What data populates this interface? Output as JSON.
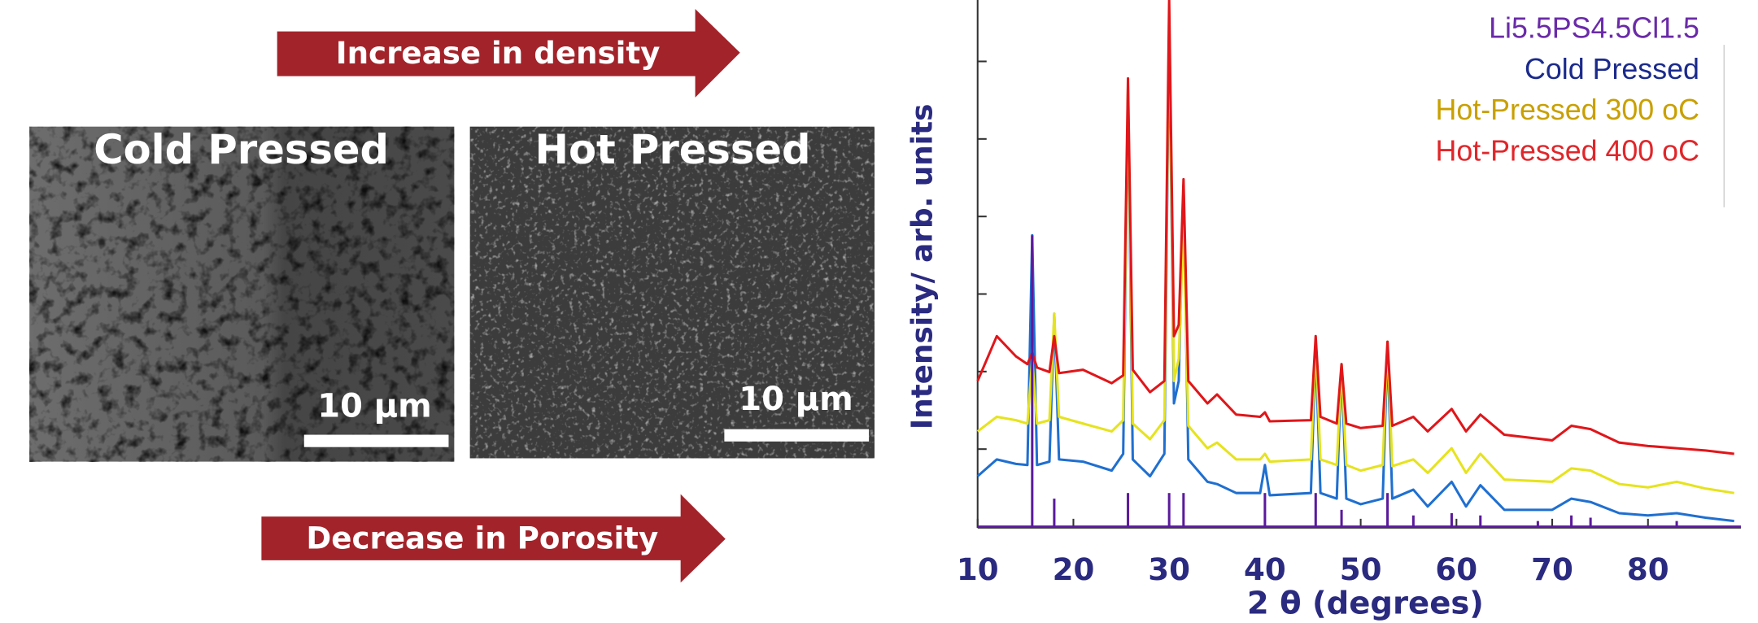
{
  "panels": {
    "arrow_top": "Increase in density",
    "arrow_bottom": "Decrease in Porosity",
    "image_left": {
      "label": "Cold Pressed",
      "scale": "10 µm"
    },
    "image_right": {
      "label": "Hot Pressed",
      "scale": "10 µm"
    }
  },
  "chart_data": {
    "type": "line",
    "x_label": "2 θ (degrees)",
    "y_label": "Intensity/ arb. units",
    "xlim": [
      10,
      89.7
    ],
    "xticks": [
      10,
      20,
      30,
      40,
      50,
      60,
      70,
      80
    ],
    "ylim": [
      0,
      47
    ],
    "legend": "top-right",
    "x": [
      10,
      12,
      14,
      15.2,
      15.7,
      16.2,
      17.5,
      18,
      18.5,
      21,
      24,
      25.2,
      25.7,
      26.2,
      28,
      29.5,
      30,
      30.5,
      31,
      31.5,
      32,
      34,
      35,
      37,
      39.5,
      40,
      40.5,
      44.8,
      45.3,
      45.8,
      47.5,
      48,
      48.5,
      50,
      52.3,
      52.8,
      53.3,
      55.5,
      57,
      59.5,
      61,
      62.5,
      65,
      70,
      72,
      74,
      77,
      80,
      83,
      86,
      89
    ],
    "series": [
      {
        "name": "Li5.5PS4.5Cl1.5",
        "style": "stick",
        "color": "#5b1a9c",
        "label_color": "#6a2aa8",
        "x": [
          15.7,
          18,
          25.7,
          30,
          31.5,
          40,
          45.3,
          48,
          52.8,
          55.5,
          59.5,
          62.5,
          68.5,
          72,
          74,
          83
        ],
        "values": [
          26,
          2.5,
          3,
          3,
          3,
          3,
          3,
          1.5,
          3,
          1,
          1.2,
          1,
          0.5,
          1,
          0.8,
          0.5
        ]
      },
      {
        "name": "Cold Pressed",
        "style": "line",
        "color": "#1f6fd0",
        "label_color": "#1a2a8c",
        "values": [
          4.5,
          6,
          5.6,
          5.5,
          26,
          5.5,
          5.8,
          19,
          6,
          5.8,
          5,
          6.5,
          39,
          6,
          4.5,
          6.5,
          45,
          11,
          13,
          30.5,
          6,
          4,
          3.8,
          3,
          3,
          5.5,
          2.8,
          3,
          16,
          3,
          2.5,
          14.5,
          2.5,
          2,
          2.5,
          16,
          2.5,
          3.3,
          1.8,
          4,
          1.8,
          3.7,
          1.5,
          1.5,
          2.5,
          2.2,
          1.2,
          1,
          1.2,
          0.8,
          0.5
        ]
      },
      {
        "name": "Hot-Pressed 300 oC",
        "style": "line",
        "color": "#e6e31e",
        "label_color": "#c9a000",
        "values": [
          8.5,
          9.8,
          9.5,
          9.2,
          15,
          9.2,
          9.5,
          19,
          9.8,
          9.2,
          8.5,
          9.5,
          39.5,
          9.2,
          7.8,
          9.5,
          46,
          13,
          15,
          27,
          9,
          7,
          7.5,
          6,
          6,
          6.5,
          5.8,
          6,
          16.5,
          6,
          5.5,
          14.5,
          5.5,
          5,
          5.5,
          16.5,
          5.4,
          6,
          4.8,
          7,
          4.8,
          6.5,
          4.2,
          4,
          5.2,
          5,
          3.8,
          3.5,
          4,
          3.4,
          3
        ]
      },
      {
        "name": "Hot-Pressed 400 oC",
        "style": "line",
        "color": "#e0161a",
        "label_color": "#e0262a",
        "values": [
          13,
          17,
          15.2,
          14.5,
          15.5,
          14.2,
          13.8,
          17,
          13.7,
          14,
          12.8,
          13.5,
          40,
          14,
          12,
          13,
          47,
          17,
          18,
          31,
          13,
          11,
          11.8,
          10,
          9.8,
          10.2,
          9.4,
          9.5,
          17,
          9.8,
          9.2,
          14.5,
          9.2,
          8.8,
          9,
          16.5,
          9,
          9.8,
          8.5,
          10.5,
          8.5,
          10,
          8.2,
          7.7,
          9,
          8.7,
          7.5,
          7.2,
          7,
          6.8,
          6.5
        ]
      }
    ]
  }
}
